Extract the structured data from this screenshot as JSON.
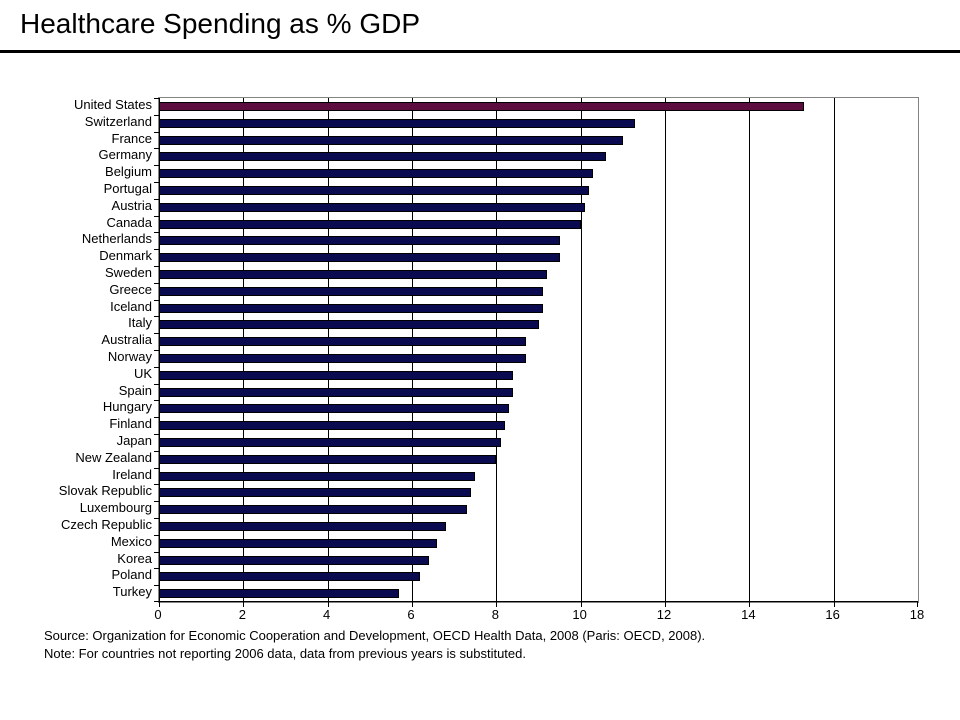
{
  "slide": {
    "title": "Healthcare Spending as % GDP",
    "source_line": "Source: Organization for Economic Cooperation and Development, OECD Health Data, 2008 (Paris: OECD, 2008).",
    "note_line": "Note: For countries not reporting 2006 data, data from previous years is substituted."
  },
  "chart_data": {
    "type": "bar",
    "orientation": "horizontal",
    "title": "Healthcare Spending as % GDP",
    "xlabel": "",
    "ylabel": "",
    "xlim": [
      0,
      18
    ],
    "x_ticks": [
      0,
      2,
      4,
      6,
      8,
      10,
      12,
      14,
      16,
      18
    ],
    "grid": true,
    "categories": [
      "United States",
      "Switzerland",
      "France",
      "Germany",
      "Belgium",
      "Portugal",
      "Austria",
      "Canada",
      "Netherlands",
      "Denmark",
      "Sweden",
      "Greece",
      "Iceland",
      "Italy",
      "Australia",
      "Norway",
      "UK",
      "Spain",
      "Hungary",
      "Finland",
      "Japan",
      "New Zealand",
      "Ireland",
      "Slovak Republic",
      "Luxembourg",
      "Czech Republic",
      "Mexico",
      "Korea",
      "Poland",
      "Turkey"
    ],
    "values": [
      15.3,
      11.3,
      11.0,
      10.6,
      10.3,
      10.2,
      10.1,
      10.0,
      9.5,
      9.5,
      9.2,
      9.1,
      9.1,
      9.0,
      8.7,
      8.7,
      8.4,
      8.4,
      8.3,
      8.2,
      8.1,
      8.0,
      7.5,
      7.4,
      7.3,
      6.8,
      6.6,
      6.4,
      6.2,
      5.7
    ],
    "highlight_category": "United States",
    "bar_color": "#0a0a50",
    "highlight_color": "#5c0c3e",
    "bar_outline_color": "#000000",
    "gridline_color": "#000000",
    "plot_border_color": "#848484"
  }
}
